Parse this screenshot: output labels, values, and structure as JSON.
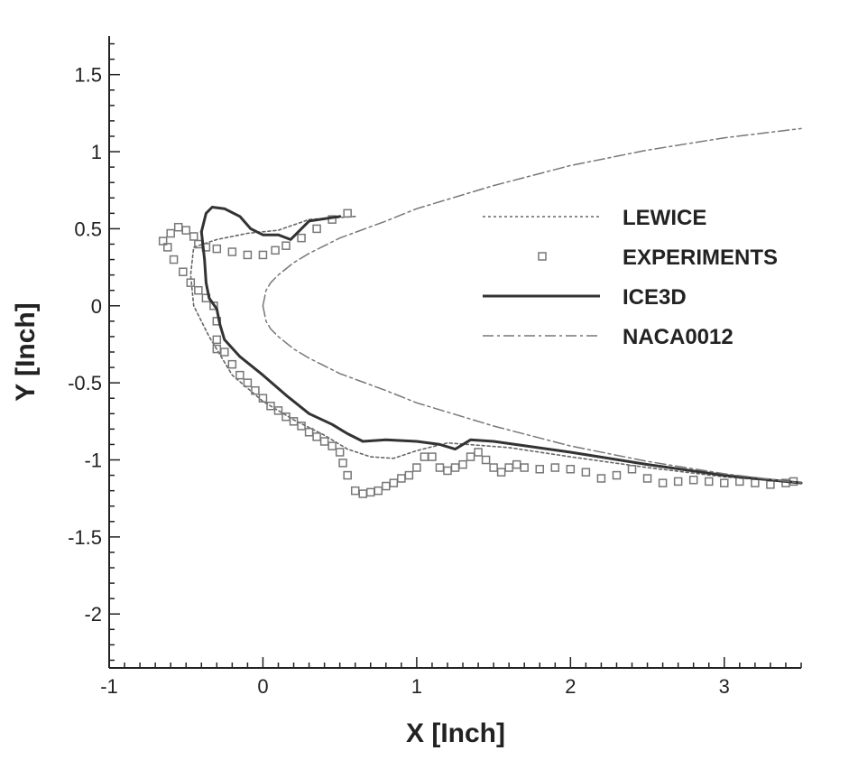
{
  "chart_data": {
    "type": "line",
    "title": "",
    "xlabel": "X [Inch]",
    "ylabel": "Y [Inch]",
    "xlim": [
      -1,
      3.5
    ],
    "ylim": [
      -2.35,
      1.75
    ],
    "x_ticks": [
      -1,
      0,
      1,
      2,
      3
    ],
    "y_ticks": [
      1.5,
      1,
      0.5,
      0,
      -0.5,
      -1,
      -1.5,
      -2
    ],
    "grid": false,
    "legend_position": "right",
    "colors": {
      "lewice": "#666666",
      "experiments": "#777777",
      "ice3d": "#333333",
      "naca": "#777777"
    },
    "series": [
      {
        "name": "LEWICE",
        "style": "dotted",
        "points": [
          [
            0.6,
            0.58
          ],
          [
            0.3,
            0.56
          ],
          [
            0.1,
            0.49
          ],
          [
            -0.1,
            0.47
          ],
          [
            -0.3,
            0.43
          ],
          [
            -0.45,
            0.38
          ],
          [
            -0.47,
            0.2
          ],
          [
            -0.45,
            0.0
          ],
          [
            -0.35,
            -0.2
          ],
          [
            -0.2,
            -0.45
          ],
          [
            0.0,
            -0.62
          ],
          [
            0.2,
            -0.74
          ],
          [
            0.4,
            -0.84
          ],
          [
            0.55,
            -0.93
          ],
          [
            0.7,
            -0.98
          ],
          [
            0.85,
            -0.99
          ],
          [
            1.0,
            -0.94
          ],
          [
            1.2,
            -0.89
          ],
          [
            1.6,
            -0.92
          ],
          [
            2.0,
            -0.98
          ],
          [
            2.5,
            -1.05
          ],
          [
            3.0,
            -1.11
          ],
          [
            3.5,
            -1.15
          ]
        ]
      },
      {
        "name": "EXPERIMENTS",
        "style": "square-markers",
        "points": [
          [
            -0.65,
            0.42
          ],
          [
            -0.6,
            0.47
          ],
          [
            -0.55,
            0.51
          ],
          [
            -0.5,
            0.49
          ],
          [
            -0.45,
            0.45
          ],
          [
            -0.42,
            0.4
          ],
          [
            -0.37,
            0.38
          ],
          [
            -0.3,
            0.37
          ],
          [
            -0.2,
            0.35
          ],
          [
            -0.1,
            0.33
          ],
          [
            0.0,
            0.33
          ],
          [
            0.08,
            0.36
          ],
          [
            0.15,
            0.39
          ],
          [
            0.25,
            0.44
          ],
          [
            0.35,
            0.5
          ],
          [
            0.45,
            0.56
          ],
          [
            0.55,
            0.6
          ],
          [
            -0.62,
            0.38
          ],
          [
            -0.58,
            0.3
          ],
          [
            -0.52,
            0.22
          ],
          [
            -0.47,
            0.15
          ],
          [
            -0.42,
            0.1
          ],
          [
            -0.37,
            0.05
          ],
          [
            -0.32,
            0.0
          ],
          [
            -0.3,
            -0.1
          ],
          [
            -0.3,
            -0.22
          ],
          [
            -0.3,
            -0.28
          ],
          [
            -0.25,
            -0.3
          ],
          [
            -0.2,
            -0.38
          ],
          [
            -0.15,
            -0.45
          ],
          [
            -0.1,
            -0.5
          ],
          [
            -0.05,
            -0.55
          ],
          [
            0.0,
            -0.6
          ],
          [
            0.05,
            -0.65
          ],
          [
            0.1,
            -0.68
          ],
          [
            0.15,
            -0.72
          ],
          [
            0.2,
            -0.75
          ],
          [
            0.25,
            -0.78
          ],
          [
            0.3,
            -0.82
          ],
          [
            0.35,
            -0.85
          ],
          [
            0.4,
            -0.88
          ],
          [
            0.45,
            -0.91
          ],
          [
            0.5,
            -0.95
          ],
          [
            0.52,
            -1.02
          ],
          [
            0.55,
            -1.1
          ],
          [
            0.6,
            -1.2
          ],
          [
            0.65,
            -1.22
          ],
          [
            0.7,
            -1.21
          ],
          [
            0.75,
            -1.2
          ],
          [
            0.8,
            -1.17
          ],
          [
            0.85,
            -1.15
          ],
          [
            0.9,
            -1.12
          ],
          [
            0.95,
            -1.1
          ],
          [
            1.0,
            -1.05
          ],
          [
            1.05,
            -0.98
          ],
          [
            1.1,
            -0.98
          ],
          [
            1.15,
            -1.05
          ],
          [
            1.2,
            -1.07
          ],
          [
            1.25,
            -1.05
          ],
          [
            1.3,
            -1.03
          ],
          [
            1.35,
            -0.98
          ],
          [
            1.4,
            -0.95
          ],
          [
            1.45,
            -1.0
          ],
          [
            1.5,
            -1.05
          ],
          [
            1.55,
            -1.08
          ],
          [
            1.6,
            -1.05
          ],
          [
            1.65,
            -1.03
          ],
          [
            1.7,
            -1.05
          ],
          [
            1.8,
            -1.06
          ],
          [
            1.9,
            -1.05
          ],
          [
            2.0,
            -1.06
          ],
          [
            2.1,
            -1.08
          ],
          [
            2.2,
            -1.12
          ],
          [
            2.3,
            -1.1
          ],
          [
            2.4,
            -1.06
          ],
          [
            2.5,
            -1.12
          ],
          [
            2.6,
            -1.15
          ],
          [
            2.7,
            -1.14
          ],
          [
            2.8,
            -1.13
          ],
          [
            2.9,
            -1.14
          ],
          [
            3.0,
            -1.15
          ],
          [
            3.1,
            -1.14
          ],
          [
            3.2,
            -1.15
          ],
          [
            3.3,
            -1.16
          ],
          [
            3.4,
            -1.15
          ],
          [
            3.45,
            -1.14
          ]
        ]
      },
      {
        "name": "ICE3D",
        "style": "solid",
        "points": [
          [
            -0.4,
            0.48
          ],
          [
            -0.37,
            0.6
          ],
          [
            -0.33,
            0.64
          ],
          [
            -0.25,
            0.63
          ],
          [
            -0.15,
            0.58
          ],
          [
            -0.08,
            0.5
          ],
          [
            0.0,
            0.46
          ],
          [
            0.1,
            0.46
          ],
          [
            0.18,
            0.43
          ],
          [
            0.3,
            0.55
          ],
          [
            0.5,
            0.58
          ],
          [
            -0.4,
            0.48
          ],
          [
            -0.38,
            0.3
          ],
          [
            -0.37,
            0.15
          ],
          [
            -0.35,
            0.05
          ],
          [
            -0.3,
            -0.02
          ],
          [
            -0.28,
            -0.12
          ],
          [
            -0.25,
            -0.22
          ],
          [
            -0.15,
            -0.33
          ],
          [
            0.0,
            -0.45
          ],
          [
            0.15,
            -0.58
          ],
          [
            0.3,
            -0.7
          ],
          [
            0.45,
            -0.77
          ],
          [
            0.55,
            -0.83
          ],
          [
            0.65,
            -0.88
          ],
          [
            0.8,
            -0.87
          ],
          [
            1.0,
            -0.88
          ],
          [
            1.15,
            -0.9
          ],
          [
            1.25,
            -0.93
          ],
          [
            1.35,
            -0.87
          ],
          [
            1.5,
            -0.88
          ],
          [
            2.0,
            -0.95
          ],
          [
            2.5,
            -1.03
          ],
          [
            3.0,
            -1.1
          ],
          [
            3.5,
            -1.15
          ]
        ]
      },
      {
        "name": "NACA0012",
        "style": "dash-dot",
        "points": [
          [
            0.0,
            0.0
          ],
          [
            0.02,
            0.1
          ],
          [
            0.05,
            0.15
          ],
          [
            0.1,
            0.2
          ],
          [
            0.2,
            0.28
          ],
          [
            0.3,
            0.34
          ],
          [
            0.5,
            0.44
          ],
          [
            0.8,
            0.55
          ],
          [
            1.0,
            0.63
          ],
          [
            1.5,
            0.78
          ],
          [
            2.0,
            0.91
          ],
          [
            2.5,
            1.01
          ],
          [
            3.0,
            1.09
          ],
          [
            3.5,
            1.15
          ],
          [
            0.02,
            -0.1
          ],
          [
            0.05,
            -0.15
          ],
          [
            0.1,
            -0.2
          ],
          [
            0.2,
            -0.28
          ],
          [
            0.3,
            -0.34
          ],
          [
            0.5,
            -0.44
          ],
          [
            0.8,
            -0.55
          ],
          [
            1.0,
            -0.63
          ],
          [
            1.5,
            -0.78
          ],
          [
            2.0,
            -0.91
          ],
          [
            2.5,
            -1.01
          ],
          [
            3.0,
            -1.09
          ],
          [
            3.5,
            -1.15
          ]
        ]
      }
    ]
  }
}
